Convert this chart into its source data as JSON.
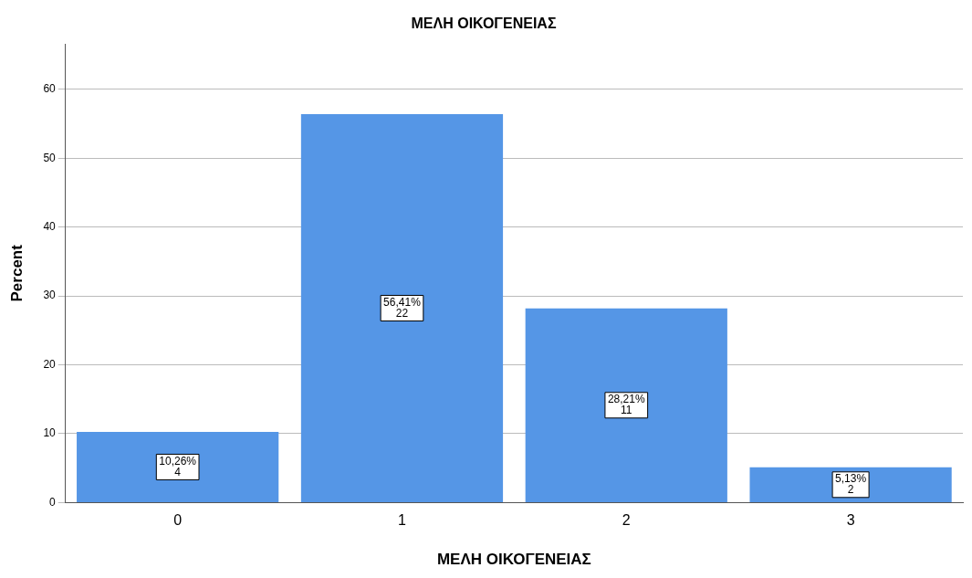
{
  "chart_data": {
    "type": "bar",
    "title": "ΜΕΛΗ ΟΙΚΟΓΕΝΕΙΑΣ",
    "xlabel": "ΜΕΛΗ ΟΙΚΟΓΕΝΕΙΑΣ",
    "ylabel": "Percent",
    "categories": [
      "0",
      "1",
      "2",
      "3"
    ],
    "values": [
      10.26,
      56.41,
      28.21,
      5.13
    ],
    "value_labels": [
      "10,26%\n4",
      "56,41%\n22",
      "28,21%\n11",
      "5,13%\n2"
    ],
    "color": "#5596e6",
    "ylim": [
      0,
      66.6
    ],
    "yticks": [
      0,
      10,
      20,
      30,
      40,
      50,
      60
    ],
    "grid": "y",
    "legend": false
  }
}
